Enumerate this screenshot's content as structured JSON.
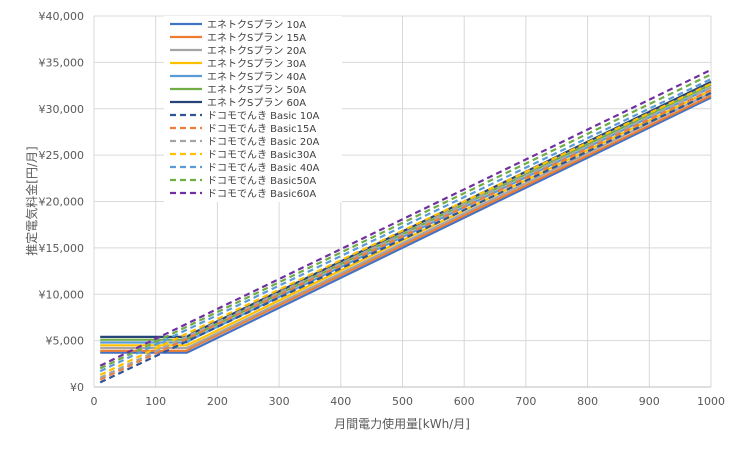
{
  "chart_data": {
    "type": "line",
    "xlabel": "月間電力使用量[kWh/月]",
    "ylabel": "推定電気料金[円/月]",
    "xlim": [
      0,
      1000
    ],
    "ylim": [
      0,
      40000
    ],
    "x_ticks": [
      "0",
      "100",
      "200",
      "300",
      "400",
      "500",
      "600",
      "700",
      "800",
      "900",
      "1000"
    ],
    "y_ticks": [
      "¥0",
      "¥5,000",
      "¥10,000",
      "¥15,000",
      "¥20,000",
      "¥25,000",
      "¥30,000",
      "¥35,000",
      "¥40,000"
    ],
    "grid": true,
    "legend_position": "top-left",
    "series": [
      {
        "name": "エネトクSプラン 10A",
        "color": "#4472C4",
        "dash": false,
        "x": [
          10,
          150,
          160,
          1000
        ],
        "y": [
          3700,
          3700,
          4000,
          31200
        ]
      },
      {
        "name": "エネトクSプラン 15A",
        "color": "#ED7D31",
        "dash": false,
        "x": [
          10,
          150,
          160,
          1000
        ],
        "y": [
          3900,
          3900,
          4300,
          31400
        ]
      },
      {
        "name": "エネトクSプラン 20A",
        "color": "#A5A5A5",
        "dash": false,
        "x": [
          10,
          150,
          160,
          1000
        ],
        "y": [
          4200,
          4200,
          4500,
          31700
        ]
      },
      {
        "name": "エネトクSプラン 30A",
        "color": "#FFC000",
        "dash": false,
        "x": [
          10,
          150,
          160,
          1000
        ],
        "y": [
          4500,
          4500,
          4800,
          32000
        ]
      },
      {
        "name": "エネトクSプラン 40A",
        "color": "#5B9BD5",
        "dash": false,
        "x": [
          10,
          150,
          160,
          1000
        ],
        "y": [
          4800,
          4800,
          5200,
          32300
        ]
      },
      {
        "name": "エネトクSプラン 50A",
        "color": "#70AD47",
        "dash": false,
        "x": [
          10,
          150,
          160,
          1000
        ],
        "y": [
          5100,
          5100,
          5500,
          32600
        ]
      },
      {
        "name": "エネトクSプラン 60A",
        "color": "#264478",
        "dash": false,
        "x": [
          10,
          150,
          160,
          1000
        ],
        "y": [
          5400,
          5400,
          5800,
          32900
        ]
      },
      {
        "name": "ドコモでんき Basic 10A",
        "color": "#2E5597",
        "dash": true,
        "x": [
          10,
          1000
        ],
        "y": [
          500,
          31700
        ]
      },
      {
        "name": "ドコモでんき Basic15A",
        "color": "#F07C3A",
        "dash": true,
        "x": [
          10,
          1000
        ],
        "y": [
          800,
          32000
        ]
      },
      {
        "name": "ドコモでんき Basic 20A",
        "color": "#A5A5A5",
        "dash": true,
        "x": [
          10,
          1000
        ],
        "y": [
          1000,
          32300
        ]
      },
      {
        "name": "ドコモでんき Basic30A",
        "color": "#FFC000",
        "dash": true,
        "x": [
          10,
          1000
        ],
        "y": [
          1300,
          32700
        ]
      },
      {
        "name": "ドコモでんき Basic 40A",
        "color": "#5B9BD5",
        "dash": true,
        "x": [
          10,
          1000
        ],
        "y": [
          1700,
          33200
        ]
      },
      {
        "name": "ドコモでんき Basic50A",
        "color": "#70AD47",
        "dash": true,
        "x": [
          10,
          1000
        ],
        "y": [
          2000,
          33700
        ]
      },
      {
        "name": "ドコモでんき Basic60A",
        "color": "#7030A0",
        "dash": true,
        "x": [
          10,
          1000
        ],
        "y": [
          2300,
          34200
        ]
      }
    ]
  }
}
